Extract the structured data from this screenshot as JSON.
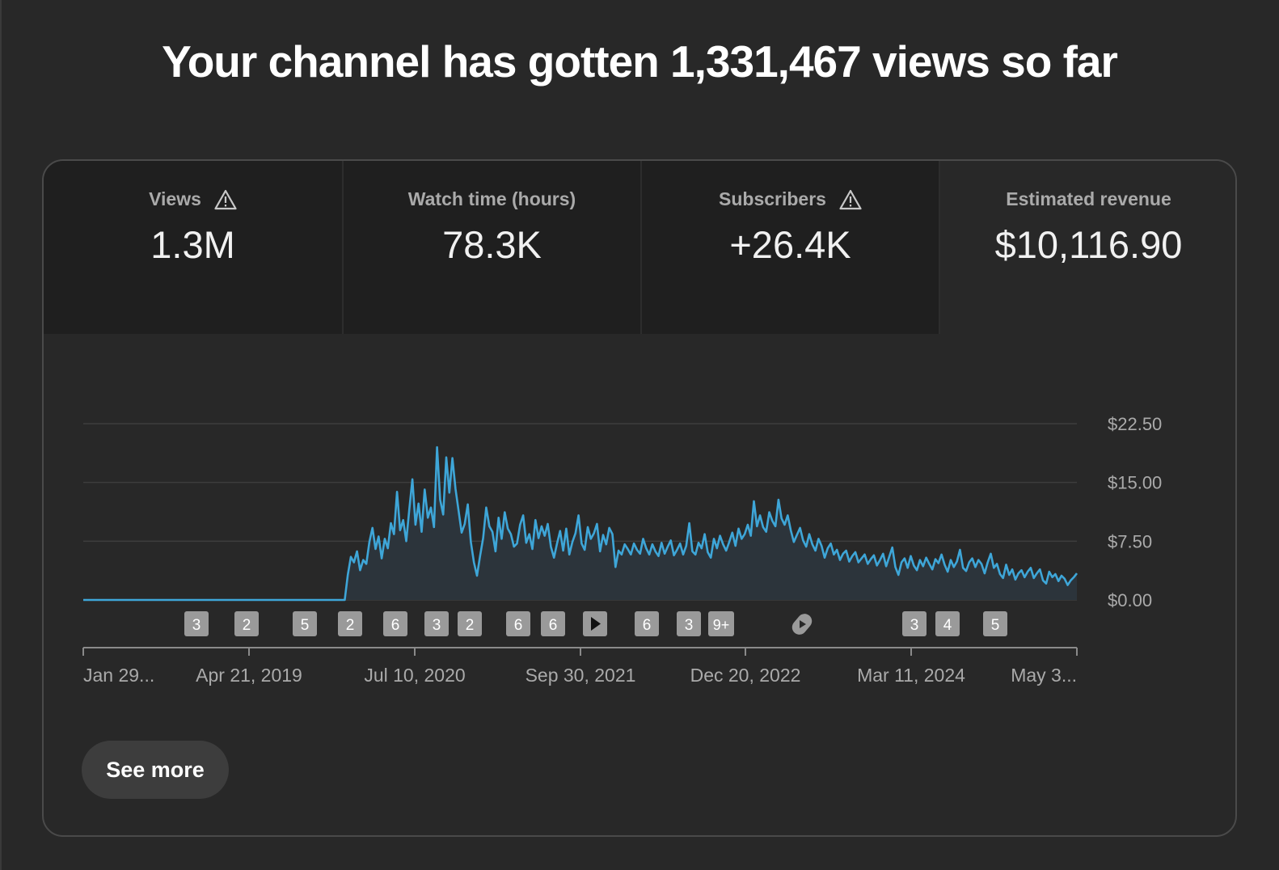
{
  "headline": "Your channel has gotten 1,331,467 views so far",
  "tabs": [
    {
      "label": "Views",
      "value": "1.3M",
      "warning": true,
      "active": false
    },
    {
      "label": "Watch time (hours)",
      "value": "78.3K",
      "warning": false,
      "active": false
    },
    {
      "label": "Subscribers",
      "value": "+26.4K",
      "warning": true,
      "active": false
    },
    {
      "label": "Estimated revenue",
      "value": "$10,116.90",
      "warning": false,
      "active": true
    }
  ],
  "see_more_label": "See more",
  "colors": {
    "line": "#3ea6d8",
    "fill": "#2c343b",
    "grid": "#3d3d3d",
    "badge": "#9a9a9a"
  },
  "chart_data": {
    "type": "area",
    "title": "Estimated revenue",
    "ylim": [
      0,
      22.5
    ],
    "y_ticks": [
      {
        "value": 22.5,
        "label": "$22.50"
      },
      {
        "value": 15,
        "label": "$15.00"
      },
      {
        "value": 7.5,
        "label": "$7.50"
      },
      {
        "value": 0,
        "label": "$0.00"
      }
    ],
    "x_ticks": [
      "Jan 29...",
      "Apr 21, 2019",
      "Jul 10, 2020",
      "Sep 30, 2021",
      "Dec 20, 2022",
      "Mar 11, 2024",
      "May 3..."
    ],
    "series": [
      {
        "name": "Estimated revenue",
        "values": [
          0,
          0,
          0,
          0,
          0,
          0,
          0,
          0,
          0,
          0,
          0,
          0,
          0,
          0,
          0,
          0,
          0,
          0,
          0,
          0,
          0,
          0,
          0,
          0,
          0,
          0,
          0,
          0,
          0,
          0,
          0,
          0,
          0,
          0,
          0,
          0,
          0,
          0,
          0,
          0,
          0,
          0,
          0,
          0,
          0,
          0,
          0,
          0,
          0,
          0,
          0,
          0,
          0,
          0,
          0,
          0,
          0,
          0,
          0,
          0,
          0,
          0,
          0,
          0,
          0,
          0,
          0,
          0,
          0,
          0,
          0,
          0,
          0,
          0,
          0,
          0,
          0,
          0,
          0,
          0,
          0,
          0,
          0,
          0,
          0,
          0,
          3.2,
          5.5,
          4.8,
          6.2,
          3.8,
          5.1,
          4.6,
          7.4,
          9.2,
          6.5,
          8.1,
          5.3,
          7.8,
          6.6,
          9.8,
          8.4,
          13.8,
          8.9,
          10.2,
          7.5,
          11.6,
          15.4,
          9.6,
          12.3,
          8.7,
          14.1,
          10.5,
          11.8,
          9.3,
          19.5,
          12.8,
          10.9,
          18.2,
          13.7,
          18.1,
          14.2,
          11.4,
          8.6,
          9.7,
          12.2,
          7.4,
          4.8,
          3.1,
          5.6,
          7.9,
          11.8,
          9.4,
          8.7,
          6.2,
          10.5,
          7.8,
          11.2,
          9.1,
          8.4,
          6.8,
          7.2,
          9.6,
          10.8,
          7.3,
          8.4,
          6.5,
          10.2,
          7.9,
          9.4,
          8.2,
          9.7,
          6.8,
          5.4,
          7.2,
          8.8,
          6.3,
          9.1,
          5.8,
          7.4,
          8.5,
          10.8,
          7.2,
          6.4,
          9.3,
          7.8,
          8.5,
          9.7,
          6.2,
          8.3,
          7.1,
          9.2,
          8.4,
          4.2,
          6.3,
          5.8,
          7.1,
          6.5,
          5.8,
          7.2,
          6.4,
          5.9,
          7.8,
          6.6,
          5.8,
          7.1,
          6.2,
          5.6,
          7.3,
          5.9,
          6.8,
          7.6,
          5.7,
          6.4,
          7.2,
          5.8,
          6.9,
          9.8,
          6.2,
          5.8,
          7.3,
          6.6,
          8.4,
          6.1,
          5.4,
          7.8,
          6.6,
          8.2,
          7.1,
          6.3,
          7.4,
          8.6,
          6.9,
          9.1,
          7.8,
          8.4,
          9.6,
          8.2,
          12.6,
          9.4,
          10.8,
          9.3,
          8.7,
          11.2,
          10.1,
          9.4,
          12.8,
          10.4,
          9.6,
          10.8,
          8.9,
          7.4,
          8.3,
          9.2,
          7.6,
          6.8,
          8.4,
          7.1,
          6.3,
          7.8,
          6.9,
          5.4,
          6.6,
          7.2,
          5.8,
          6.4,
          5.1,
          5.9,
          6.3,
          4.9,
          5.6,
          6.1,
          4.8,
          5.3,
          5.8,
          4.6,
          5.2,
          5.7,
          4.4,
          5.1,
          5.9,
          4.3,
          5.5,
          6.7,
          4.2,
          3.2,
          4.8,
          5.3,
          4.1,
          5.6,
          4.4,
          3.8,
          5.1,
          4.3,
          5.4,
          4.6,
          3.9,
          5.2,
          4.7,
          5.8,
          4.5,
          3.6,
          5.1,
          4.2,
          4.9,
          6.4,
          4.1,
          3.7,
          4.8,
          5.3,
          4.2,
          5.1,
          4.6,
          3.4,
          4.8,
          5.9,
          4.1,
          4.6,
          3.3,
          2.8,
          4.5,
          3.2,
          3.9,
          2.6,
          3.4,
          3.8,
          2.9,
          3.6,
          4.1,
          2.8,
          3.4,
          3.9,
          2.5,
          2.1,
          3.6,
          2.9,
          3.3,
          2.4,
          3.1,
          2.7,
          1.9,
          2.5,
          2.9,
          3.4
        ]
      }
    ]
  },
  "markers": [
    "3",
    "2",
    "5",
    "2",
    "6",
    "3",
    "2",
    "6",
    "6",
    "play-icon",
    "6",
    "3",
    "9+",
    "shorts-icon",
    "3",
    "4",
    "5"
  ]
}
